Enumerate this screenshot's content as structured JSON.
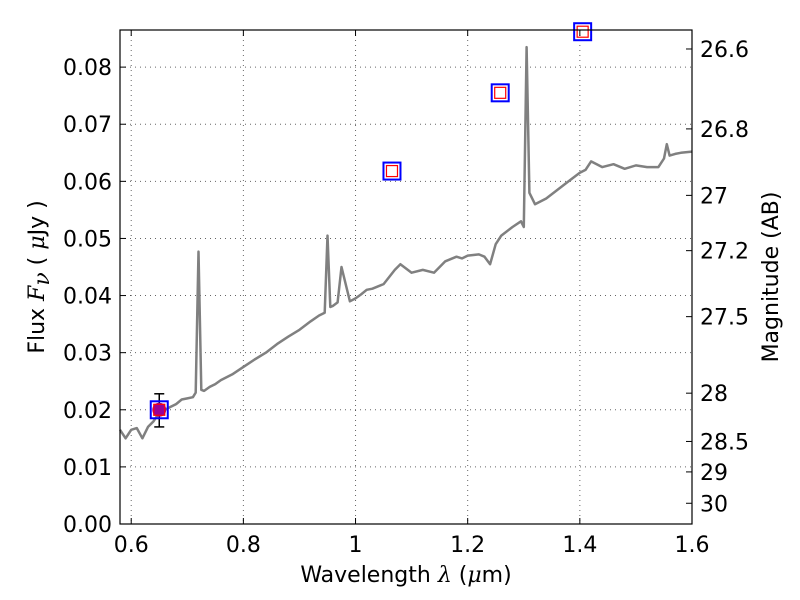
{
  "chart_data": {
    "type": "line",
    "xlabel": {
      "prefix": "Wavelength ",
      "symbol": "λ",
      "unit_open": " (",
      "unit_symbol": "μ",
      "unit_rest": "m)"
    },
    "ylabel": {
      "prefix": "Flux  ",
      "symbol": "F",
      "sub": "ν",
      "unit_open": "  ( ",
      "unit_symbol": "μ",
      "unit_rest": "Jy )"
    },
    "y2label": "Magnitude (AB)",
    "xlim": [
      0.58,
      1.6
    ],
    "ylim": [
      0.0,
      0.0865
    ],
    "x_ticks": [
      0.6,
      0.8,
      1.0,
      1.2,
      1.4,
      1.6
    ],
    "x_tick_labels": [
      "0.6",
      "0.8",
      "1",
      "1.2",
      "1.4",
      "1.6"
    ],
    "y_ticks": [
      0.0,
      0.01,
      0.02,
      0.03,
      0.04,
      0.05,
      0.06,
      0.07,
      0.08
    ],
    "y_tick_labels": [
      "0.00",
      "0.01",
      "0.02",
      "0.03",
      "0.04",
      "0.05",
      "0.06",
      "0.07",
      "0.08"
    ],
    "y2_ticks": [
      26.6,
      26.8,
      27,
      27.2,
      27.5,
      28,
      28.5,
      29,
      30
    ],
    "y2_tick_labels": [
      "26.6",
      "26.8",
      "27",
      "27.2",
      "27.5",
      "28",
      "28.5",
      "29",
      "30"
    ],
    "grid": true,
    "colors": {
      "spectrum": "#808080",
      "model_box": "#0000ff",
      "model_inner": "#ff0000",
      "observed_point": "#990099"
    },
    "series": [
      {
        "type": "line",
        "x": [
          0.58,
          0.59,
          0.6,
          0.61,
          0.62,
          0.63,
          0.64,
          0.65,
          0.66,
          0.67,
          0.68,
          0.69,
          0.7,
          0.71,
          0.715,
          0.72,
          0.725,
          0.73,
          0.74,
          0.75,
          0.76,
          0.78,
          0.8,
          0.82,
          0.84,
          0.86,
          0.88,
          0.9,
          0.92,
          0.935,
          0.945,
          0.95,
          0.955,
          0.96,
          0.968,
          0.975,
          0.99,
          1.0,
          1.01,
          1.02,
          1.03,
          1.05,
          1.07,
          1.08,
          1.1,
          1.12,
          1.14,
          1.16,
          1.18,
          1.19,
          1.2,
          1.22,
          1.23,
          1.24,
          1.25,
          1.26,
          1.28,
          1.295,
          1.3,
          1.305,
          1.31,
          1.32,
          1.34,
          1.36,
          1.38,
          1.4,
          1.41,
          1.42,
          1.44,
          1.46,
          1.48,
          1.5,
          1.52,
          1.54,
          1.55,
          1.555,
          1.56,
          1.57,
          1.58,
          1.6
        ],
        "y": [
          0.0165,
          0.015,
          0.0165,
          0.0168,
          0.015,
          0.017,
          0.018,
          0.0195,
          0.02,
          0.0205,
          0.021,
          0.0218,
          0.022,
          0.0222,
          0.023,
          0.0477,
          0.0235,
          0.0233,
          0.024,
          0.0245,
          0.0252,
          0.0262,
          0.0275,
          0.0288,
          0.03,
          0.0315,
          0.0328,
          0.034,
          0.0355,
          0.0365,
          0.037,
          0.0505,
          0.038,
          0.0382,
          0.0388,
          0.045,
          0.039,
          0.0395,
          0.0402,
          0.041,
          0.0412,
          0.042,
          0.0445,
          0.0455,
          0.044,
          0.0445,
          0.044,
          0.046,
          0.0468,
          0.0465,
          0.047,
          0.0472,
          0.0468,
          0.0455,
          0.049,
          0.0505,
          0.052,
          0.053,
          0.052,
          0.0835,
          0.058,
          0.056,
          0.057,
          0.0585,
          0.06,
          0.0615,
          0.062,
          0.0635,
          0.0625,
          0.063,
          0.0622,
          0.0628,
          0.0625,
          0.0625,
          0.064,
          0.0665,
          0.0645,
          0.0648,
          0.065,
          0.0652
        ]
      },
      {
        "type": "scatter",
        "marker": "square",
        "x": [
          0.65,
          1.065,
          1.258,
          1.405
        ],
        "y": [
          0.02,
          0.0618,
          0.0755,
          0.0862
        ]
      },
      {
        "type": "scatter",
        "marker": "circle",
        "x": [
          0.65
        ],
        "y": [
          0.02
        ],
        "yerr_low": [
          0.017
        ],
        "yerr_high": [
          0.0228
        ]
      }
    ]
  }
}
